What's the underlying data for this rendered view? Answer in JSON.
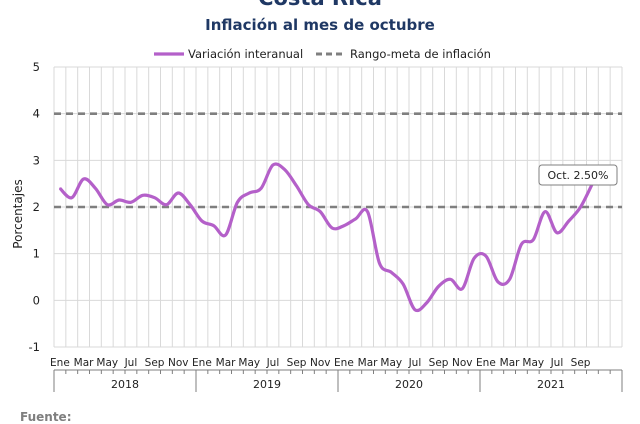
{
  "header": {
    "title": "Costa Rica",
    "subtitle": "Inflación al mes de octubre"
  },
  "footer": {
    "source_label": "Fuente:"
  },
  "chart_data": {
    "type": "line",
    "ylabel": "Porcentajes",
    "ylim": [
      -1,
      5
    ],
    "yticks": [
      -1,
      0,
      1,
      2,
      3,
      4,
      5
    ],
    "grid": true,
    "legend_position": "top",
    "month_labels": [
      "Ene",
      "Mar",
      "May",
      "Jul",
      "Sep",
      "Nov"
    ],
    "month_labels_last_year": [
      "Ene",
      "Mar",
      "May",
      "Jul",
      "Sep"
    ],
    "years": [
      "2018",
      "2019",
      "2020",
      "2021"
    ],
    "series": [
      {
        "name": "Variación interanual",
        "color": "#b460c9",
        "x": [
          "2018-01",
          "2018-02",
          "2018-03",
          "2018-04",
          "2018-05",
          "2018-06",
          "2018-07",
          "2018-08",
          "2018-09",
          "2018-10",
          "2018-11",
          "2018-12",
          "2019-01",
          "2019-02",
          "2019-03",
          "2019-04",
          "2019-05",
          "2019-06",
          "2019-07",
          "2019-08",
          "2019-09",
          "2019-10",
          "2019-11",
          "2019-12",
          "2020-01",
          "2020-02",
          "2020-03",
          "2020-04",
          "2020-05",
          "2020-06",
          "2020-07",
          "2020-08",
          "2020-09",
          "2020-10",
          "2020-11",
          "2020-12",
          "2021-01",
          "2021-02",
          "2021-03",
          "2021-04",
          "2021-05",
          "2021-06",
          "2021-07",
          "2021-08",
          "2021-09",
          "2021-10"
        ],
        "values": [
          2.4,
          2.2,
          2.6,
          2.4,
          2.05,
          2.15,
          2.1,
          2.25,
          2.2,
          2.05,
          2.3,
          2.05,
          1.7,
          1.6,
          1.4,
          2.1,
          2.3,
          2.4,
          2.9,
          2.8,
          2.45,
          2.05,
          1.9,
          1.55,
          1.6,
          1.75,
          1.9,
          0.8,
          0.6,
          0.35,
          -0.2,
          -0.05,
          0.3,
          0.45,
          0.25,
          0.9,
          0.95,
          0.4,
          0.45,
          1.2,
          1.3,
          1.9,
          1.45,
          1.7,
          2.0,
          2.5
        ]
      },
      {
        "name": "Rango-meta de inflación",
        "color": "#7f7f7f",
        "dashed": true,
        "levels": [
          2,
          4
        ]
      }
    ],
    "annotation": {
      "text": "Oct. 2.50%",
      "x": "2021-10",
      "y": 2.5
    }
  }
}
